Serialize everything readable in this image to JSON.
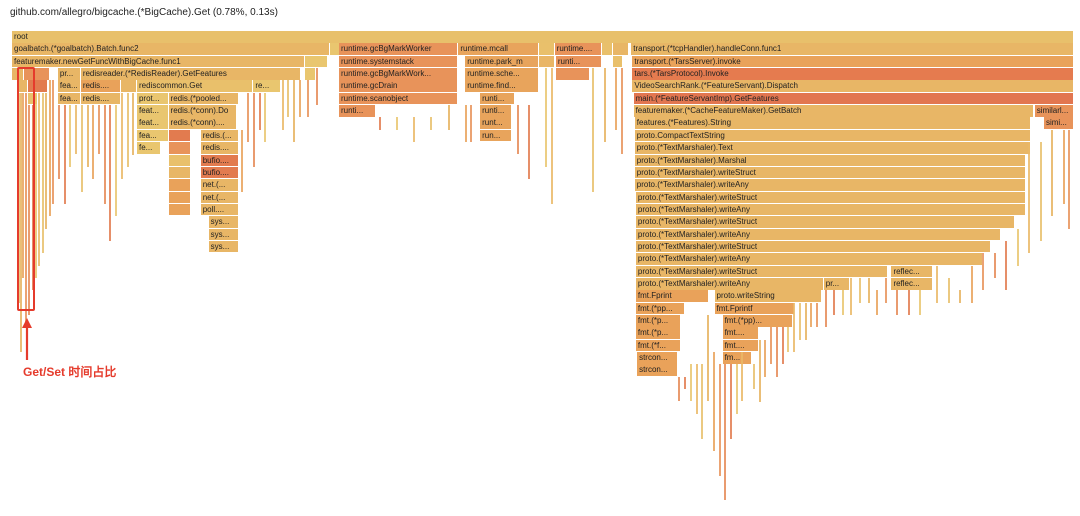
{
  "details": "github.com/allegro/bigcache.(*BigCache).Get (0.78%, 0.13s)",
  "annotation": {
    "label": "Get/Set 时间占比",
    "color": "#e53b2c"
  },
  "flame_colors": [
    "#e8c06b",
    "#e6b35f",
    "#e9a25a",
    "#e8935a",
    "#e58a56",
    "#e27b4f",
    "#e9c66f",
    "#eab866"
  ],
  "frames": [
    {
      "label": "root",
      "d": 0,
      "x": 0.0,
      "w": 1.0,
      "c": "#e8c06b"
    },
    {
      "label": "goalbatch.(*goalbatch).Batch.func2",
      "d": 1,
      "x": 0.0,
      "w": 0.2993,
      "c": "#e8b666"
    },
    {
      "label": "",
      "d": 1,
      "x": 0.2993,
      "w": 0.0095,
      "c": "#e9c66f"
    },
    {
      "label": "runtime.gcBgMarkWorker",
      "d": 1,
      "x": 0.3079,
      "w": 0.1123,
      "c": "#e8935a"
    },
    {
      "label": "runtime.mcall",
      "d": 1,
      "x": 0.4203,
      "w": 0.0756,
      "c": "#e8a45c"
    },
    {
      "label": "",
      "d": 1,
      "x": 0.4959,
      "w": 0.0151,
      "c": "#e9c06b"
    },
    {
      "label": "runtime....",
      "d": 1,
      "x": 0.511,
      "w": 0.0443,
      "c": "#e8935a"
    },
    {
      "label": "",
      "d": 1,
      "x": 0.5553,
      "w": 0.0108,
      "c": "#e9c06b"
    },
    {
      "label": "",
      "d": 1,
      "x": 0.5661,
      "w": 0.0151,
      "c": "#e8b666"
    },
    {
      "label": "transport.(*tcpHandler).handleConn.func1",
      "d": 1,
      "x": 0.5831,
      "w": 0.4169,
      "c": "#e8b666"
    },
    {
      "label": "featuremaker.newGetFuncWithBigCache.func1",
      "d": 2,
      "x": 0.0,
      "w": 0.2757,
      "c": "#e8b666"
    },
    {
      "label": "",
      "d": 2,
      "x": 0.2757,
      "w": 0.0216,
      "c": "#e9c66f"
    },
    {
      "label": "runtime.systemstack",
      "d": 2,
      "x": 0.3079,
      "w": 0.1123,
      "c": "#e8935a"
    },
    {
      "label": "runtime.park_m",
      "d": 2,
      "x": 0.4268,
      "w": 0.0691,
      "c": "#e8a45c"
    },
    {
      "label": "",
      "d": 2,
      "x": 0.4959,
      "w": 0.0151,
      "c": "#e9b666"
    },
    {
      "label": "runti...",
      "d": 2,
      "x": 0.5121,
      "w": 0.0432,
      "c": "#e8935a"
    },
    {
      "label": "",
      "d": 2,
      "x": 0.5661,
      "w": 0.0097,
      "c": "#e9c06b"
    },
    {
      "label": "transport.(*TarsServer).invoke",
      "d": 2,
      "x": 0.5842,
      "w": 0.4158,
      "c": "#e9a25a"
    },
    {
      "label": "",
      "d": 3,
      "x": 0.0,
      "w": 0.0113,
      "c": "#e8b666"
    },
    {
      "label": "",
      "d": 3,
      "x": 0.0113,
      "w": 0.0248,
      "c": "#e8935a"
    },
    {
      "label": "pr...",
      "d": 3,
      "x": 0.0432,
      "w": 0.0216,
      "c": "#e8b666"
    },
    {
      "label": "redisreader.(*RedisReader).GetFeatures",
      "d": 3,
      "x": 0.0648,
      "w": 0.2073,
      "c": "#e8b666"
    },
    {
      "label": "",
      "d": 3,
      "x": 0.2757,
      "w": 0.0108,
      "c": "#e9c66f"
    },
    {
      "label": "runtime.gcBgMarkWork...",
      "d": 3,
      "x": 0.3079,
      "w": 0.1123,
      "c": "#e8935a"
    },
    {
      "label": "runtime.sche...",
      "d": 3,
      "x": 0.4268,
      "w": 0.0691,
      "c": "#e8a45c"
    },
    {
      "label": "",
      "d": 3,
      "x": 0.5121,
      "w": 0.0324,
      "c": "#e8935a"
    },
    {
      "label": "tars.(*TarsProtocol).Invoke",
      "d": 3,
      "x": 0.5842,
      "w": 0.4158,
      "c": "#e57b4f"
    },
    {
      "label": "",
      "d": 4,
      "x": 0.0054,
      "w": 0.0097,
      "c": "#e8b666"
    },
    {
      "label": "",
      "d": 4,
      "x": 0.0151,
      "w": 0.0184,
      "c": "#e27b4f"
    },
    {
      "label": "fea...",
      "d": 4,
      "x": 0.0432,
      "w": 0.0216,
      "c": "#e8b666"
    },
    {
      "label": "redis....",
      "d": 4,
      "x": 0.0648,
      "w": 0.0378,
      "c": "#e9a25a"
    },
    {
      "label": "",
      "d": 4,
      "x": 0.1026,
      "w": 0.0151,
      "c": "#e8b666"
    },
    {
      "label": "rediscommon.Get",
      "d": 4,
      "x": 0.1177,
      "w": 0.1096,
      "c": "#e9c06b"
    },
    {
      "label": "re...",
      "d": 4,
      "x": 0.2273,
      "w": 0.0259,
      "c": "#e9c66f"
    },
    {
      "label": "runtime.gcDrain",
      "d": 4,
      "x": 0.3079,
      "w": 0.1123,
      "c": "#e8935a"
    },
    {
      "label": "runtime.find...",
      "d": 4,
      "x": 0.4268,
      "w": 0.0691,
      "c": "#e8a45c"
    },
    {
      "label": "VideoSearchRank.(*FeatureServant).Dispatch",
      "d": 4,
      "x": 0.5842,
      "w": 0.4158,
      "c": "#e8b666"
    },
    {
      "label": "",
      "d": 5,
      "x": 0.0151,
      "w": 0.0097,
      "c": "#e9c06b"
    },
    {
      "label": "fea...",
      "d": 5,
      "x": 0.0432,
      "w": 0.0216,
      "c": "#e8b666"
    },
    {
      "label": "redis....",
      "d": 5,
      "x": 0.0648,
      "w": 0.0378,
      "c": "#e8b666"
    },
    {
      "label": "prot...",
      "d": 5,
      "x": 0.1177,
      "w": 0.0297,
      "c": "#e9c66f"
    },
    {
      "label": "redis.(*pooled...",
      "d": 5,
      "x": 0.1474,
      "w": 0.0659,
      "c": "#e8b666"
    },
    {
      "label": "runtime.scanobject",
      "d": 5,
      "x": 0.3079,
      "w": 0.1123,
      "c": "#e8935a"
    },
    {
      "label": "runti...",
      "d": 5,
      "x": 0.4408,
      "w": 0.0324,
      "c": "#e8a45c"
    },
    {
      "label": "main.(*FeatureServantImp).GetFeatures",
      "d": 5,
      "x": 0.5853,
      "w": 0.4147,
      "c": "#e27650"
    },
    {
      "label": "feat...",
      "d": 6,
      "x": 0.1177,
      "w": 0.0297,
      "c": "#e9c66f"
    },
    {
      "label": "redis.(*conn).Do",
      "d": 6,
      "x": 0.1474,
      "w": 0.0648,
      "c": "#e8b666"
    },
    {
      "label": "runti...",
      "d": 6,
      "x": 0.3079,
      "w": 0.0346,
      "c": "#e8935a"
    },
    {
      "label": "runti...",
      "d": 6,
      "x": 0.4408,
      "w": 0.0302,
      "c": "#e8a45c"
    },
    {
      "label": "featuremaker.(*CacheFeatureMaker).GetBatch",
      "d": 6,
      "x": 0.5853,
      "w": 0.3767,
      "c": "#e8b666"
    },
    {
      "label": "similarl...",
      "d": 6,
      "x": 0.9631,
      "w": 0.0369,
      "c": "#e8935a"
    },
    {
      "label": "feat...",
      "d": 7,
      "x": 0.1177,
      "w": 0.0297,
      "c": "#e9c66f"
    },
    {
      "label": "redis.(*conn)....",
      "d": 7,
      "x": 0.1474,
      "w": 0.0648,
      "c": "#e8b666"
    },
    {
      "label": "runt...",
      "d": 7,
      "x": 0.4408,
      "w": 0.0302,
      "c": "#e8a45c"
    },
    {
      "label": "features.(*Features).String",
      "d": 7,
      "x": 0.5864,
      "w": 0.3735,
      "c": "#e8b666"
    },
    {
      "label": "simi...",
      "d": 7,
      "x": 0.9717,
      "w": 0.0283,
      "c": "#e8935a"
    },
    {
      "label": "fea...",
      "d": 8,
      "x": 0.1177,
      "w": 0.0297,
      "c": "#e9c66f"
    },
    {
      "label": "",
      "d": 8,
      "x": 0.1474,
      "w": 0.0216,
      "c": "#e27b4f"
    },
    {
      "label": "redis.(...",
      "d": 8,
      "x": 0.1777,
      "w": 0.0356,
      "c": "#e8b666"
    },
    {
      "label": "run...",
      "d": 8,
      "x": 0.4408,
      "w": 0.0302,
      "c": "#e8a45c"
    },
    {
      "label": "proto.CompactTextString",
      "d": 8,
      "x": 0.5864,
      "w": 0.3735,
      "c": "#e8b666"
    },
    {
      "label": "fe...",
      "d": 9,
      "x": 0.1177,
      "w": 0.0227,
      "c": "#e9c66f"
    },
    {
      "label": "",
      "d": 9,
      "x": 0.1474,
      "w": 0.0216,
      "c": "#e8935a"
    },
    {
      "label": "redis....",
      "d": 9,
      "x": 0.1777,
      "w": 0.0356,
      "c": "#e8b666"
    },
    {
      "label": "proto.(*TextMarshaler).Text",
      "d": 9,
      "x": 0.5864,
      "w": 0.3735,
      "c": "#e8b666"
    },
    {
      "label": "",
      "d": 10,
      "x": 0.1474,
      "w": 0.0216,
      "c": "#e9c06b"
    },
    {
      "label": "bufio....",
      "d": 10,
      "x": 0.1777,
      "w": 0.0356,
      "c": "#e27b4f"
    },
    {
      "label": "proto.(*TextMarshaler).Marshal",
      "d": 10,
      "x": 0.5864,
      "w": 0.3681,
      "c": "#e8b666"
    },
    {
      "label": "",
      "d": 11,
      "x": 0.1474,
      "w": 0.0216,
      "c": "#e8b666"
    },
    {
      "label": "bufio....",
      "d": 11,
      "x": 0.1777,
      "w": 0.0356,
      "c": "#e27b4f"
    },
    {
      "label": "proto.(*TextMarshaler).writeStruct",
      "d": 11,
      "x": 0.5864,
      "w": 0.3681,
      "c": "#e8b666"
    },
    {
      "label": "",
      "d": 12,
      "x": 0.1474,
      "w": 0.0216,
      "c": "#e9a25a"
    },
    {
      "label": "net.(...",
      "d": 12,
      "x": 0.1777,
      "w": 0.0356,
      "c": "#e8b666"
    },
    {
      "label": "proto.(*TextMarshaler).writeAny",
      "d": 12,
      "x": 0.5864,
      "w": 0.3681,
      "c": "#e8b666"
    },
    {
      "label": "",
      "d": 13,
      "x": 0.1474,
      "w": 0.0216,
      "c": "#e9a25a"
    },
    {
      "label": "net.(...",
      "d": 13,
      "x": 0.1777,
      "w": 0.0356,
      "c": "#e8b666"
    },
    {
      "label": "proto.(*TextMarshaler).writeStruct",
      "d": 13,
      "x": 0.5875,
      "w": 0.367,
      "c": "#e8b666"
    },
    {
      "label": "",
      "d": 14,
      "x": 0.1474,
      "w": 0.0216,
      "c": "#e9a25a"
    },
    {
      "label": "poll....",
      "d": 14,
      "x": 0.1777,
      "w": 0.0356,
      "c": "#e8b666"
    },
    {
      "label": "proto.(*TextMarshaler).writeAny",
      "d": 14,
      "x": 0.5875,
      "w": 0.367,
      "c": "#e8b666"
    },
    {
      "label": "sys...",
      "d": 15,
      "x": 0.1852,
      "w": 0.0281,
      "c": "#e8b666"
    },
    {
      "label": "proto.(*TextMarshaler).writeStruct",
      "d": 15,
      "x": 0.5875,
      "w": 0.3573,
      "c": "#e8b666"
    },
    {
      "label": "sys...",
      "d": 16,
      "x": 0.1852,
      "w": 0.0281,
      "c": "#e8b666"
    },
    {
      "label": "proto.(*TextMarshaler).writeAny",
      "d": 16,
      "x": 0.5875,
      "w": 0.3433,
      "c": "#e8b666"
    },
    {
      "label": "sys...",
      "d": 17,
      "x": 0.1852,
      "w": 0.0281,
      "c": "#e8b666"
    },
    {
      "label": "proto.(*TextMarshaler).writeStruct",
      "d": 17,
      "x": 0.5875,
      "w": 0.3348,
      "c": "#e8b666"
    },
    {
      "label": "proto.(*TextMarshaler).writeAny",
      "d": 18,
      "x": 0.5875,
      "w": 0.3272,
      "c": "#e8b666"
    },
    {
      "label": "proto.(*TextMarshaler).writeStruct",
      "d": 19,
      "x": 0.5875,
      "w": 0.2374,
      "c": "#e8b666"
    },
    {
      "label": "reflec...",
      "d": 19,
      "x": 0.8281,
      "w": 0.0389,
      "c": "#e8b666"
    },
    {
      "label": "proto.(*TextMarshaler).writeAny",
      "d": 20,
      "x": 0.5875,
      "w": 0.1769,
      "c": "#e8b666"
    },
    {
      "label": "pr...",
      "d": 20,
      "x": 0.7644,
      "w": 0.0243,
      "c": "#e8b666"
    },
    {
      "label": "reflec...",
      "d": 20,
      "x": 0.8281,
      "w": 0.0389,
      "c": "#e8b666"
    },
    {
      "label": "fmt.Fprint",
      "d": 21,
      "x": 0.5875,
      "w": 0.0686,
      "c": "#e9a25a"
    },
    {
      "label": "proto.writeString",
      "d": 21,
      "x": 0.6615,
      "w": 0.1013,
      "c": "#e8b666"
    },
    {
      "label": "fmt.(*pp...",
      "d": 22,
      "x": 0.5875,
      "w": 0.0459,
      "c": "#e9a25a"
    },
    {
      "label": "fmt.Fprintf",
      "d": 22,
      "x": 0.6615,
      "w": 0.0756,
      "c": "#e9a25a"
    },
    {
      "label": "fmt.(*p...",
      "d": 23,
      "x": 0.5875,
      "w": 0.0428,
      "c": "#e9a25a"
    },
    {
      "label": "fmt.(*pp)...",
      "d": 23,
      "x": 0.6691,
      "w": 0.0659,
      "c": "#e9a25a"
    },
    {
      "label": "fmt.(*p...",
      "d": 24,
      "x": 0.5875,
      "w": 0.0428,
      "c": "#e9a25a"
    },
    {
      "label": "fmt....",
      "d": 24,
      "x": 0.6691,
      "w": 0.0346,
      "c": "#e9a25a"
    },
    {
      "label": "fmt.(*f...",
      "d": 25,
      "x": 0.5875,
      "w": 0.0428,
      "c": "#e9a25a"
    },
    {
      "label": "fmt....",
      "d": 25,
      "x": 0.6691,
      "w": 0.0346,
      "c": "#e9a25a"
    },
    {
      "label": "strcon...",
      "d": 26,
      "x": 0.5886,
      "w": 0.0389,
      "c": "#e9a25a"
    },
    {
      "label": "fm...",
      "d": 26,
      "x": 0.6691,
      "w": 0.0281,
      "c": "#e9a25a"
    },
    {
      "label": "strcon...",
      "d": 27,
      "x": 0.5886,
      "w": 0.0389,
      "c": "#e9a25a"
    },
    {
      "label": "",
      "d": 1,
      "x": 0.0,
      "w": 0.0,
      "c": "#ffffff"
    }
  ],
  "slivers": [
    {
      "x": 0.0054,
      "d0": 5,
      "d1": 22
    },
    {
      "x": 0.0076,
      "d0": 5,
      "d1": 26
    },
    {
      "x": 0.0097,
      "d0": 5,
      "d1": 20
    },
    {
      "x": 0.0119,
      "d0": 5,
      "d1": 24
    },
    {
      "x": 0.0151,
      "d0": 6,
      "d1": 23
    },
    {
      "x": 0.0184,
      "d0": 6,
      "d1": 21
    },
    {
      "x": 0.0216,
      "d0": 5,
      "d1": 20
    },
    {
      "x": 0.0248,
      "d0": 5,
      "d1": 19
    },
    {
      "x": 0.0281,
      "d0": 5,
      "d1": 18
    },
    {
      "x": 0.0313,
      "d0": 5,
      "d1": 16
    },
    {
      "x": 0.0346,
      "d0": 4,
      "d1": 15
    },
    {
      "x": 0.0378,
      "d0": 4,
      "d1": 14
    },
    {
      "x": 0.0432,
      "d0": 6,
      "d1": 12
    },
    {
      "x": 0.0486,
      "d0": 6,
      "d1": 14
    },
    {
      "x": 0.054,
      "d0": 6,
      "d1": 11
    },
    {
      "x": 0.0594,
      "d0": 6,
      "d1": 10
    },
    {
      "x": 0.0648,
      "d0": 6,
      "d1": 13
    },
    {
      "x": 0.0702,
      "d0": 6,
      "d1": 11
    },
    {
      "x": 0.0756,
      "d0": 6,
      "d1": 12
    },
    {
      "x": 0.081,
      "d0": 6,
      "d1": 10
    },
    {
      "x": 0.0864,
      "d0": 6,
      "d1": 14
    },
    {
      "x": 0.0918,
      "d0": 6,
      "d1": 17
    },
    {
      "x": 0.0972,
      "d0": 6,
      "d1": 15
    },
    {
      "x": 0.1026,
      "d0": 5,
      "d1": 12
    },
    {
      "x": 0.108,
      "d0": 5,
      "d1": 11
    },
    {
      "x": 0.1134,
      "d0": 5,
      "d1": 10
    },
    {
      "x": 0.2159,
      "d0": 8,
      "d1": 13
    },
    {
      "x": 0.2214,
      "d0": 5,
      "d1": 9
    },
    {
      "x": 0.2268,
      "d0": 5,
      "d1": 11
    },
    {
      "x": 0.2322,
      "d0": 5,
      "d1": 8
    },
    {
      "x": 0.2376,
      "d0": 5,
      "d1": 9
    },
    {
      "x": 0.2538,
      "d0": 4,
      "d1": 8
    },
    {
      "x": 0.2592,
      "d0": 4,
      "d1": 7
    },
    {
      "x": 0.2646,
      "d0": 4,
      "d1": 9
    },
    {
      "x": 0.27,
      "d0": 4,
      "d1": 7
    },
    {
      "x": 0.2781,
      "d0": 4,
      "d1": 7
    },
    {
      "x": 0.2862,
      "d0": 3,
      "d1": 6
    },
    {
      "x": 0.3457,
      "d0": 7,
      "d1": 8
    },
    {
      "x": 0.3618,
      "d0": 7,
      "d1": 8
    },
    {
      "x": 0.3779,
      "d0": 7,
      "d1": 9
    },
    {
      "x": 0.394,
      "d0": 7,
      "d1": 8
    },
    {
      "x": 0.4101,
      "d0": 6,
      "d1": 8
    },
    {
      "x": 0.4262,
      "d0": 6,
      "d1": 9
    },
    {
      "x": 0.4316,
      "d0": 6,
      "d1": 9
    },
    {
      "x": 0.4751,
      "d0": 6,
      "d1": 10
    },
    {
      "x": 0.4859,
      "d0": 6,
      "d1": 12
    },
    {
      "x": 0.5021,
      "d0": 3,
      "d1": 11
    },
    {
      "x": 0.5075,
      "d0": 3,
      "d1": 14
    },
    {
      "x": 0.5463,
      "d0": 3,
      "d1": 13
    },
    {
      "x": 0.5571,
      "d0": 3,
      "d1": 9
    },
    {
      "x": 0.5679,
      "d0": 3,
      "d1": 8
    },
    {
      "x": 0.5733,
      "d0": 3,
      "d1": 10
    },
    {
      "x": 0.6275,
      "d0": 28,
      "d1": 30
    },
    {
      "x": 0.6329,
      "d0": 28,
      "d1": 29
    },
    {
      "x": 0.6383,
      "d0": 27,
      "d1": 30
    },
    {
      "x": 0.6437,
      "d0": 27,
      "d1": 31
    },
    {
      "x": 0.6491,
      "d0": 27,
      "d1": 33
    },
    {
      "x": 0.6545,
      "d0": 23,
      "d1": 30
    },
    {
      "x": 0.6599,
      "d0": 26,
      "d1": 34
    },
    {
      "x": 0.6653,
      "d0": 27,
      "d1": 36
    },
    {
      "x": 0.6707,
      "d0": 27,
      "d1": 38
    },
    {
      "x": 0.6761,
      "d0": 27,
      "d1": 33
    },
    {
      "x": 0.6815,
      "d0": 27,
      "d1": 31
    },
    {
      "x": 0.6869,
      "d0": 26,
      "d1": 30
    },
    {
      "x": 0.6977,
      "d0": 27,
      "d1": 29
    },
    {
      "x": 0.7031,
      "d0": 25,
      "d1": 30
    },
    {
      "x": 0.7085,
      "d0": 25,
      "d1": 28
    },
    {
      "x": 0.7139,
      "d0": 24,
      "d1": 27
    },
    {
      "x": 0.7193,
      "d0": 24,
      "d1": 28
    },
    {
      "x": 0.7247,
      "d0": 24,
      "d1": 27
    },
    {
      "x": 0.7301,
      "d0": 24,
      "d1": 26
    },
    {
      "x": 0.7355,
      "d0": 22,
      "d1": 26
    },
    {
      "x": 0.7409,
      "d0": 22,
      "d1": 25
    },
    {
      "x": 0.7463,
      "d0": 22,
      "d1": 25
    },
    {
      "x": 0.7517,
      "d0": 22,
      "d1": 24
    },
    {
      "x": 0.7571,
      "d0": 22,
      "d1": 24
    },
    {
      "x": 0.7652,
      "d0": 21,
      "d1": 24
    },
    {
      "x": 0.7733,
      "d0": 21,
      "d1": 23
    },
    {
      "x": 0.7814,
      "d0": 21,
      "d1": 23
    },
    {
      "x": 0.7895,
      "d0": 20,
      "d1": 23
    },
    {
      "x": 0.7976,
      "d0": 20,
      "d1": 22
    },
    {
      "x": 0.8057,
      "d0": 20,
      "d1": 22
    },
    {
      "x": 0.8138,
      "d0": 21,
      "d1": 23
    },
    {
      "x": 0.8219,
      "d0": 20,
      "d1": 22
    },
    {
      "x": 0.8327,
      "d0": 21,
      "d1": 23
    },
    {
      "x": 0.8435,
      "d0": 21,
      "d1": 23
    },
    {
      "x": 0.8543,
      "d0": 21,
      "d1": 23
    },
    {
      "x": 0.8705,
      "d0": 19,
      "d1": 22
    },
    {
      "x": 0.8813,
      "d0": 20,
      "d1": 22
    },
    {
      "x": 0.8921,
      "d0": 21,
      "d1": 22
    },
    {
      "x": 0.9029,
      "d0": 19,
      "d1": 22
    },
    {
      "x": 0.9137,
      "d0": 18,
      "d1": 21
    },
    {
      "x": 0.9245,
      "d0": 18,
      "d1": 20
    },
    {
      "x": 0.9353,
      "d0": 17,
      "d1": 21
    },
    {
      "x": 0.9461,
      "d0": 16,
      "d1": 19
    },
    {
      "x": 0.9569,
      "d0": 9,
      "d1": 18
    },
    {
      "x": 0.9677,
      "d0": 9,
      "d1": 17
    },
    {
      "x": 0.9785,
      "d0": 8,
      "d1": 15
    },
    {
      "x": 0.9893,
      "d0": 8,
      "d1": 14
    },
    {
      "x": 0.9947,
      "d0": 8,
      "d1": 16
    }
  ]
}
